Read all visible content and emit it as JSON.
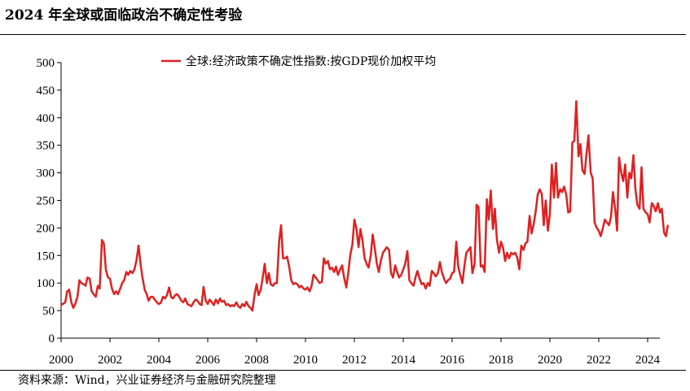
{
  "header": {
    "title": "2024 年全球或面临政治不确定性考验"
  },
  "footer": {
    "source": "资料来源：Wind，兴业证券经济与金融研究院整理"
  },
  "colors": {
    "series": "#e02020",
    "axis": "#000000"
  },
  "chart_data": {
    "type": "line",
    "title": "",
    "xlabel": "",
    "ylabel": "",
    "xlim": [
      2000,
      2024.5
    ],
    "ylim": [
      0,
      500
    ],
    "grid": false,
    "legend_position": "top",
    "x_ticks": [
      2000,
      2002,
      2004,
      2006,
      2008,
      2010,
      2012,
      2014,
      2016,
      2018,
      2020,
      2022,
      2024
    ],
    "y_ticks": [
      0,
      50,
      100,
      150,
      200,
      250,
      300,
      350,
      400,
      450,
      500
    ],
    "series": [
      {
        "name": "全球:经济政策不确定性指数:按GDP现价加权平均",
        "color": "#e02020",
        "points": [
          [
            2000.0,
            60
          ],
          [
            2000.17,
            65
          ],
          [
            2000.25,
            85
          ],
          [
            2000.33,
            88
          ],
          [
            2000.42,
            65
          ],
          [
            2000.5,
            55
          ],
          [
            2000.58,
            62
          ],
          [
            2000.67,
            75
          ],
          [
            2000.75,
            105
          ],
          [
            2000.83,
            100
          ],
          [
            2000.92,
            98
          ],
          [
            2001.0,
            95
          ],
          [
            2001.08,
            110
          ],
          [
            2001.17,
            108
          ],
          [
            2001.25,
            85
          ],
          [
            2001.33,
            80
          ],
          [
            2001.42,
            75
          ],
          [
            2001.5,
            95
          ],
          [
            2001.58,
            90
          ],
          [
            2001.67,
            178
          ],
          [
            2001.75,
            172
          ],
          [
            2001.83,
            125
          ],
          [
            2001.92,
            110
          ],
          [
            2002.0,
            108
          ],
          [
            2002.08,
            90
          ],
          [
            2002.17,
            80
          ],
          [
            2002.25,
            85
          ],
          [
            2002.33,
            80
          ],
          [
            2002.42,
            90
          ],
          [
            2002.5,
            100
          ],
          [
            2002.58,
            105
          ],
          [
            2002.67,
            120
          ],
          [
            2002.75,
            115
          ],
          [
            2002.83,
            122
          ],
          [
            2002.92,
            118
          ],
          [
            2003.0,
            125
          ],
          [
            2003.08,
            140
          ],
          [
            2003.17,
            168
          ],
          [
            2003.25,
            135
          ],
          [
            2003.33,
            110
          ],
          [
            2003.42,
            88
          ],
          [
            2003.5,
            80
          ],
          [
            2003.58,
            68
          ],
          [
            2003.67,
            75
          ],
          [
            2003.75,
            75
          ],
          [
            2003.83,
            70
          ],
          [
            2003.92,
            65
          ],
          [
            2004.0,
            62
          ],
          [
            2004.08,
            64
          ],
          [
            2004.17,
            75
          ],
          [
            2004.25,
            72
          ],
          [
            2004.33,
            78
          ],
          [
            2004.42,
            92
          ],
          [
            2004.5,
            75
          ],
          [
            2004.58,
            72
          ],
          [
            2004.67,
            78
          ],
          [
            2004.75,
            80
          ],
          [
            2004.83,
            75
          ],
          [
            2004.92,
            68
          ],
          [
            2005.0,
            65
          ],
          [
            2005.08,
            72
          ],
          [
            2005.17,
            62
          ],
          [
            2005.25,
            60
          ],
          [
            2005.33,
            58
          ],
          [
            2005.42,
            65
          ],
          [
            2005.5,
            70
          ],
          [
            2005.58,
            68
          ],
          [
            2005.67,
            62
          ],
          [
            2005.75,
            60
          ],
          [
            2005.83,
            93
          ],
          [
            2005.92,
            68
          ],
          [
            2006.0,
            62
          ],
          [
            2006.08,
            70
          ],
          [
            2006.17,
            65
          ],
          [
            2006.25,
            60
          ],
          [
            2006.33,
            70
          ],
          [
            2006.42,
            63
          ],
          [
            2006.5,
            72
          ],
          [
            2006.58,
            66
          ],
          [
            2006.67,
            68
          ],
          [
            2006.75,
            60
          ],
          [
            2006.83,
            62
          ],
          [
            2006.92,
            58
          ],
          [
            2007.0,
            60
          ],
          [
            2007.08,
            58
          ],
          [
            2007.17,
            65
          ],
          [
            2007.25,
            58
          ],
          [
            2007.33,
            55
          ],
          [
            2007.42,
            62
          ],
          [
            2007.5,
            58
          ],
          [
            2007.58,
            66
          ],
          [
            2007.67,
            58
          ],
          [
            2007.75,
            55
          ],
          [
            2007.83,
            50
          ],
          [
            2007.92,
            80
          ],
          [
            2008.0,
            98
          ],
          [
            2008.08,
            78
          ],
          [
            2008.17,
            88
          ],
          [
            2008.25,
            110
          ],
          [
            2008.33,
            135
          ],
          [
            2008.42,
            100
          ],
          [
            2008.5,
            118
          ],
          [
            2008.58,
            98
          ],
          [
            2008.67,
            95
          ],
          [
            2008.75,
            100
          ],
          [
            2008.83,
            100
          ],
          [
            2008.92,
            175
          ],
          [
            2009.0,
            205
          ],
          [
            2009.08,
            145
          ],
          [
            2009.17,
            145
          ],
          [
            2009.25,
            148
          ],
          [
            2009.33,
            130
          ],
          [
            2009.42,
            105
          ],
          [
            2009.5,
            98
          ],
          [
            2009.58,
            100
          ],
          [
            2009.67,
            98
          ],
          [
            2009.75,
            92
          ],
          [
            2009.83,
            95
          ],
          [
            2009.92,
            90
          ],
          [
            2010.0,
            88
          ],
          [
            2010.08,
            92
          ],
          [
            2010.17,
            85
          ],
          [
            2010.25,
            95
          ],
          [
            2010.33,
            115
          ],
          [
            2010.42,
            110
          ],
          [
            2010.5,
            105
          ],
          [
            2010.58,
            100
          ],
          [
            2010.67,
            102
          ],
          [
            2010.75,
            145
          ],
          [
            2010.83,
            135
          ],
          [
            2010.92,
            140
          ],
          [
            2011.0,
            125
          ],
          [
            2011.08,
            128
          ],
          [
            2011.17,
            120
          ],
          [
            2011.25,
            130
          ],
          [
            2011.33,
            115
          ],
          [
            2011.42,
            125
          ],
          [
            2011.5,
            132
          ],
          [
            2011.58,
            110
          ],
          [
            2011.67,
            92
          ],
          [
            2011.75,
            118
          ],
          [
            2011.83,
            150
          ],
          [
            2011.92,
            170
          ],
          [
            2012.0,
            215
          ],
          [
            2012.08,
            200
          ],
          [
            2012.17,
            165
          ],
          [
            2012.25,
            198
          ],
          [
            2012.33,
            178
          ],
          [
            2012.42,
            145
          ],
          [
            2012.5,
            135
          ],
          [
            2012.58,
            128
          ],
          [
            2012.67,
            150
          ],
          [
            2012.75,
            188
          ],
          [
            2012.83,
            165
          ],
          [
            2012.92,
            135
          ],
          [
            2013.0,
            120
          ],
          [
            2013.08,
            140
          ],
          [
            2013.17,
            155
          ],
          [
            2013.25,
            160
          ],
          [
            2013.33,
            165
          ],
          [
            2013.42,
            160
          ],
          [
            2013.5,
            118
          ],
          [
            2013.58,
            110
          ],
          [
            2013.67,
            132
          ],
          [
            2013.75,
            120
          ],
          [
            2013.83,
            110
          ],
          [
            2013.92,
            115
          ],
          [
            2014.0,
            125
          ],
          [
            2014.08,
            135
          ],
          [
            2014.17,
            158
          ],
          [
            2014.25,
            105
          ],
          [
            2014.33,
            100
          ],
          [
            2014.42,
            95
          ],
          [
            2014.5,
            110
          ],
          [
            2014.58,
            122
          ],
          [
            2014.67,
            108
          ],
          [
            2014.75,
            98
          ],
          [
            2014.83,
            100
          ],
          [
            2014.92,
            90
          ],
          [
            2015.0,
            100
          ],
          [
            2015.08,
            95
          ],
          [
            2015.17,
            122
          ],
          [
            2015.25,
            118
          ],
          [
            2015.33,
            112
          ],
          [
            2015.42,
            118
          ],
          [
            2015.5,
            138
          ],
          [
            2015.58,
            120
          ],
          [
            2015.67,
            108
          ],
          [
            2015.75,
            100
          ],
          [
            2015.83,
            105
          ],
          [
            2015.92,
            108
          ],
          [
            2016.0,
            118
          ],
          [
            2016.08,
            120
          ],
          [
            2016.17,
            175
          ],
          [
            2016.25,
            130
          ],
          [
            2016.33,
            115
          ],
          [
            2016.42,
            100
          ],
          [
            2016.5,
            130
          ],
          [
            2016.58,
            155
          ],
          [
            2016.67,
            160
          ],
          [
            2016.75,
            165
          ],
          [
            2016.83,
            118
          ],
          [
            2016.92,
            135
          ],
          [
            2017.0,
            242
          ],
          [
            2017.08,
            238
          ],
          [
            2017.17,
            130
          ],
          [
            2017.25,
            132
          ],
          [
            2017.33,
            120
          ],
          [
            2017.42,
            252
          ],
          [
            2017.5,
            215
          ],
          [
            2017.58,
            268
          ],
          [
            2017.67,
            198
          ],
          [
            2017.75,
            235
          ],
          [
            2017.83,
            180
          ],
          [
            2017.92,
            155
          ],
          [
            2018.0,
            175
          ],
          [
            2018.08,
            165
          ],
          [
            2018.17,
            140
          ],
          [
            2018.25,
            155
          ],
          [
            2018.33,
            145
          ],
          [
            2018.42,
            155
          ],
          [
            2018.5,
            152
          ],
          [
            2018.58,
            155
          ],
          [
            2018.67,
            145
          ],
          [
            2018.75,
            125
          ],
          [
            2018.83,
            168
          ],
          [
            2018.92,
            160
          ],
          [
            2019.0,
            172
          ],
          [
            2019.08,
            175
          ],
          [
            2019.17,
            222
          ],
          [
            2019.25,
            190
          ],
          [
            2019.33,
            205
          ],
          [
            2019.42,
            230
          ],
          [
            2019.5,
            260
          ],
          [
            2019.58,
            270
          ],
          [
            2019.67,
            262
          ],
          [
            2019.75,
            205
          ],
          [
            2019.83,
            250
          ],
          [
            2019.92,
            195
          ],
          [
            2020.0,
            225
          ],
          [
            2020.08,
            315
          ],
          [
            2020.17,
            255
          ],
          [
            2020.25,
            318
          ],
          [
            2020.33,
            255
          ],
          [
            2020.42,
            270
          ],
          [
            2020.5,
            265
          ],
          [
            2020.58,
            275
          ],
          [
            2020.67,
            260
          ],
          [
            2020.75,
            228
          ],
          [
            2020.83,
            230
          ],
          [
            2020.92,
            355
          ],
          [
            2021.0,
            358
          ],
          [
            2021.08,
            430
          ],
          [
            2021.17,
            330
          ],
          [
            2021.25,
            352
          ],
          [
            2021.33,
            305
          ],
          [
            2021.42,
            298
          ],
          [
            2021.5,
            335
          ],
          [
            2021.58,
            368
          ],
          [
            2021.67,
            300
          ],
          [
            2021.75,
            290
          ],
          [
            2021.83,
            210
          ],
          [
            2021.92,
            200
          ],
          [
            2022.0,
            195
          ],
          [
            2022.08,
            185
          ],
          [
            2022.17,
            200
          ],
          [
            2022.25,
            215
          ],
          [
            2022.33,
            210
          ],
          [
            2022.42,
            205
          ],
          [
            2022.5,
            220
          ],
          [
            2022.58,
            265
          ],
          [
            2022.67,
            235
          ],
          [
            2022.75,
            195
          ],
          [
            2022.83,
            328
          ],
          [
            2022.92,
            300
          ],
          [
            2023.0,
            285
          ],
          [
            2023.08,
            315
          ],
          [
            2023.17,
            255
          ],
          [
            2023.25,
            300
          ],
          [
            2023.33,
            290
          ],
          [
            2023.42,
            332
          ],
          [
            2023.5,
            270
          ],
          [
            2023.58,
            242
          ],
          [
            2023.67,
            235
          ],
          [
            2023.75,
            310
          ],
          [
            2023.83,
            235
          ],
          [
            2023.92,
            228
          ],
          [
            2024.0,
            225
          ],
          [
            2024.08,
            210
          ],
          [
            2024.17,
            245
          ],
          [
            2024.25,
            240
          ],
          [
            2024.33,
            230
          ],
          [
            2024.42,
            245
          ],
          [
            2024.5,
            228
          ],
          [
            2024.58,
            235
          ],
          [
            2024.67,
            192
          ],
          [
            2024.75,
            185
          ],
          [
            2024.83,
            205
          ]
        ]
      }
    ]
  }
}
